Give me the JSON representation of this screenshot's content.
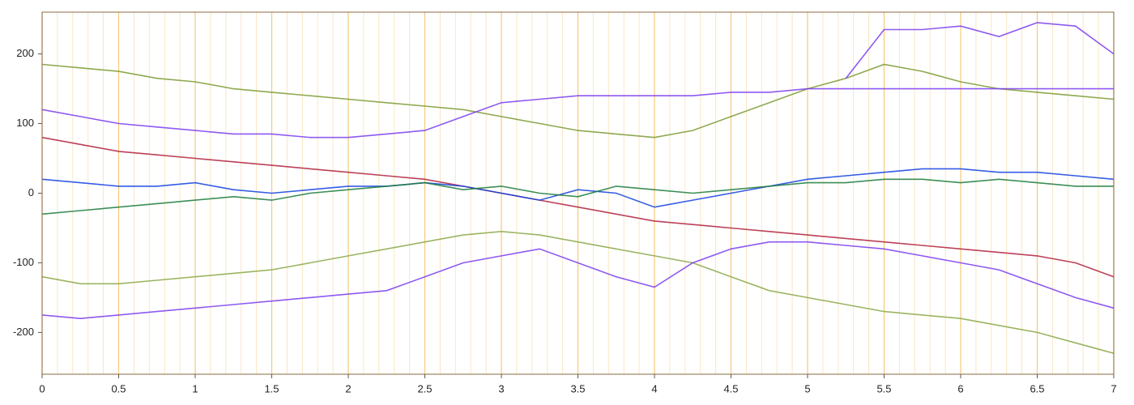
{
  "chart_data": {
    "type": "line",
    "x": [
      0,
      0.25,
      0.5,
      0.75,
      1,
      1.25,
      1.5,
      1.75,
      2,
      2.25,
      2.5,
      2.75,
      3,
      3.25,
      3.5,
      3.75,
      4,
      4.25,
      4.5,
      4.75,
      5,
      5.25,
      5.5,
      5.75,
      6,
      6.25,
      6.5,
      6.75,
      7
    ],
    "series": [
      {
        "color": "#7a9a30",
        "values": [
          185,
          180,
          175,
          165,
          160,
          150,
          145,
          140,
          135,
          130,
          125,
          120,
          110,
          100,
          90,
          85,
          80,
          90,
          110,
          130,
          150,
          165,
          185,
          175,
          160,
          150,
          145,
          140,
          135
        ]
      },
      {
        "color": "#8aa845",
        "values": [
          -120,
          -130,
          -130,
          -125,
          -120,
          -115,
          -110,
          -100,
          -90,
          -80,
          -70,
          -60,
          -55,
          -60,
          -70,
          -80,
          -90,
          -100,
          -120,
          -140,
          -150,
          -160,
          -170,
          -175,
          -180,
          -190,
          -200,
          -215,
          -230
        ]
      },
      {
        "color": "#7a3cf0",
        "values": [
          120,
          110,
          100,
          95,
          90,
          85,
          85,
          80,
          80,
          85,
          90,
          110,
          130,
          135,
          140,
          140,
          140,
          140,
          145,
          145,
          150,
          150,
          150,
          150,
          150,
          150,
          150,
          150,
          150
        ]
      },
      {
        "color": "#7a3cf0",
        "values": [
          -175,
          -180,
          -175,
          -170,
          -165,
          -160,
          -155,
          -150,
          -145,
          -140,
          -120,
          -100,
          -90,
          -80,
          -100,
          -120,
          -135,
          -100,
          -80,
          -70,
          -70,
          -75,
          -80,
          -90,
          -100,
          -110,
          -130,
          -150,
          -165
        ]
      },
      {
        "color": "#7a3cf0",
        "values": [
          null,
          null,
          null,
          null,
          null,
          null,
          null,
          null,
          null,
          null,
          null,
          null,
          null,
          null,
          null,
          null,
          null,
          null,
          null,
          null,
          null,
          165,
          235,
          235,
          240,
          225,
          245,
          240,
          200
        ]
      },
      {
        "color": "#b0203a",
        "values": [
          80,
          70,
          60,
          55,
          50,
          45,
          40,
          35,
          30,
          25,
          20,
          10,
          0,
          -10,
          -20,
          -30,
          -40,
          -45,
          -50,
          -55,
          -60,
          -65,
          -70,
          -75,
          -80,
          -85,
          -90,
          -100,
          -120
        ]
      },
      {
        "color": "#1040e0",
        "values": [
          20,
          15,
          10,
          10,
          15,
          5,
          0,
          5,
          10,
          10,
          15,
          10,
          0,
          -10,
          5,
          0,
          -20,
          -10,
          0,
          10,
          20,
          25,
          30,
          35,
          35,
          30,
          30,
          25,
          20
        ]
      },
      {
        "color": "#1a7a3a",
        "values": [
          -30,
          -25,
          -20,
          -15,
          -10,
          -5,
          -10,
          0,
          5,
          10,
          15,
          5,
          10,
          0,
          -5,
          10,
          5,
          0,
          5,
          10,
          15,
          15,
          20,
          20,
          15,
          20,
          15,
          10,
          10
        ]
      }
    ],
    "xlim": [
      0,
      7
    ],
    "xticks": [
      0,
      0.5,
      1,
      1.5,
      2,
      2.5,
      3,
      3.5,
      4,
      4.5,
      5,
      5.5,
      6,
      6.5,
      7
    ],
    "ylim": [
      -260,
      260
    ],
    "yticks": [
      -200,
      -100,
      0,
      100,
      200
    ],
    "grid": true,
    "grid_color": "#f5c878"
  }
}
